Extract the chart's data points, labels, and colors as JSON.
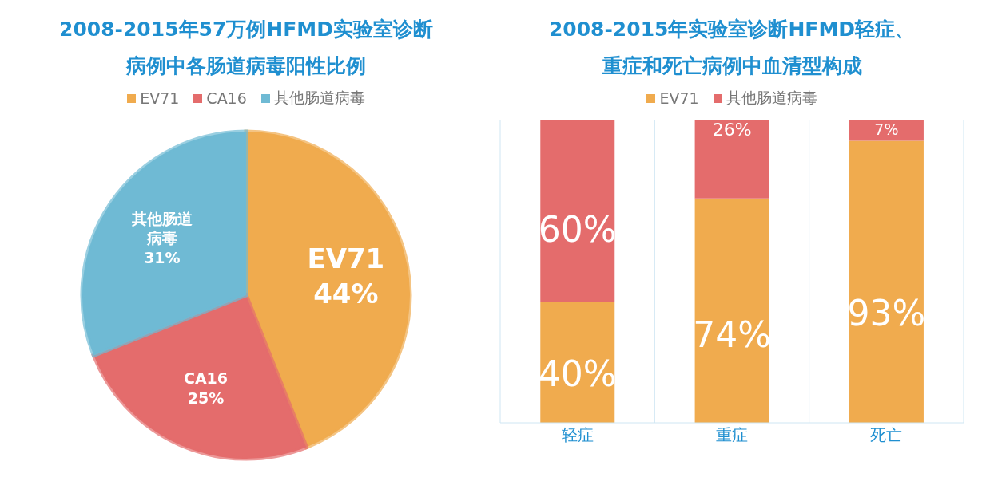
{
  "chart_data": [
    {
      "type": "pie",
      "title": "2008-2015年57万例HFMD实验室诊断病例中各肠道病毒阳性比例",
      "categories": [
        "EV71",
        "CA16",
        "其他肠道病毒"
      ],
      "values": [
        44,
        25,
        31
      ],
      "colors": [
        "#f0ab4e",
        "#e46c6c",
        "#6fbad4"
      ],
      "value_labels": [
        "44%",
        "25%",
        "31%"
      ],
      "legend": "top"
    },
    {
      "type": "bar",
      "title": "2008-2015年实验室诊断HFMD轻症、重症和死亡病例中血清型构成",
      "categories": [
        "轻症",
        "重症",
        "死亡"
      ],
      "stacked": true,
      "ylim": [
        0,
        100
      ],
      "tick_labels": "x",
      "grid": "x",
      "legend": "top",
      "series": [
        {
          "name": "EV71",
          "color": "#f0ab4e",
          "values": [
            40,
            74,
            93
          ],
          "value_labels": [
            "40%",
            "74%",
            "93%"
          ]
        },
        {
          "name": "其他肠道病毒",
          "color": "#e46c6c",
          "values": [
            60,
            26,
            7
          ],
          "value_labels": [
            "60%",
            "26%",
            "7%"
          ]
        }
      ]
    }
  ]
}
